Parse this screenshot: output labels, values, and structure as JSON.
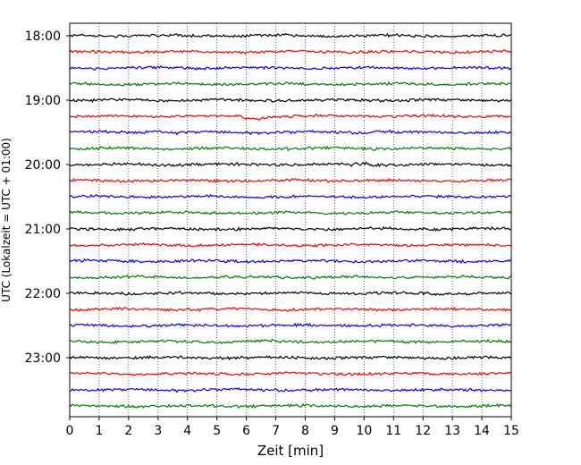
{
  "chart_data": {
    "type": "line",
    "subtype": "helicorder",
    "title": "",
    "xlabel": "Zeit  [min]",
    "ylabel": "UTC (Lokalzeit = UTC + 01:00)",
    "xlim": [
      0,
      15
    ],
    "x_ticks": [
      "0",
      "1",
      "2",
      "3",
      "4",
      "5",
      "6",
      "7",
      "8",
      "9",
      "10",
      "11",
      "12",
      "13",
      "14",
      "15"
    ],
    "y_ticks": [
      "18:00",
      "19:00",
      "20:00",
      "21:00",
      "22:00",
      "23:00"
    ],
    "minutes_per_line": 15,
    "start_time": "18:00",
    "traces_count": 24,
    "colors": [
      "#000000",
      "#ff0000",
      "#0000ff",
      "#008000"
    ],
    "grid": "vertical dotted lines at each minute",
    "legend": "none"
  }
}
